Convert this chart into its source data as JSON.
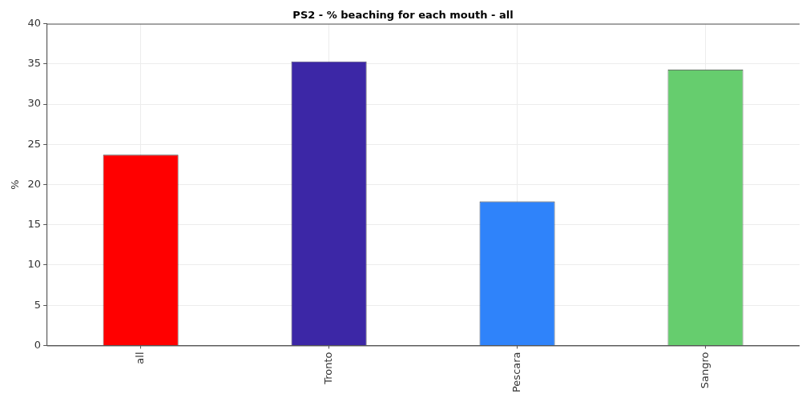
{
  "chart_data": {
    "type": "bar",
    "title": "PS2 - % beaching for each mouth - all",
    "ylabel": "%",
    "categories": [
      "all",
      "Tronto",
      "Pescara",
      "Sangro"
    ],
    "values": [
      23.7,
      35.3,
      17.9,
      34.3
    ],
    "colors": [
      "#ff0000",
      "#3c27a6",
      "#2f83fa",
      "#66cd6e"
    ],
    "ylim": [
      0,
      40
    ],
    "yticks": [
      0,
      5,
      10,
      15,
      20,
      25,
      30,
      35,
      40
    ],
    "grid": true
  }
}
